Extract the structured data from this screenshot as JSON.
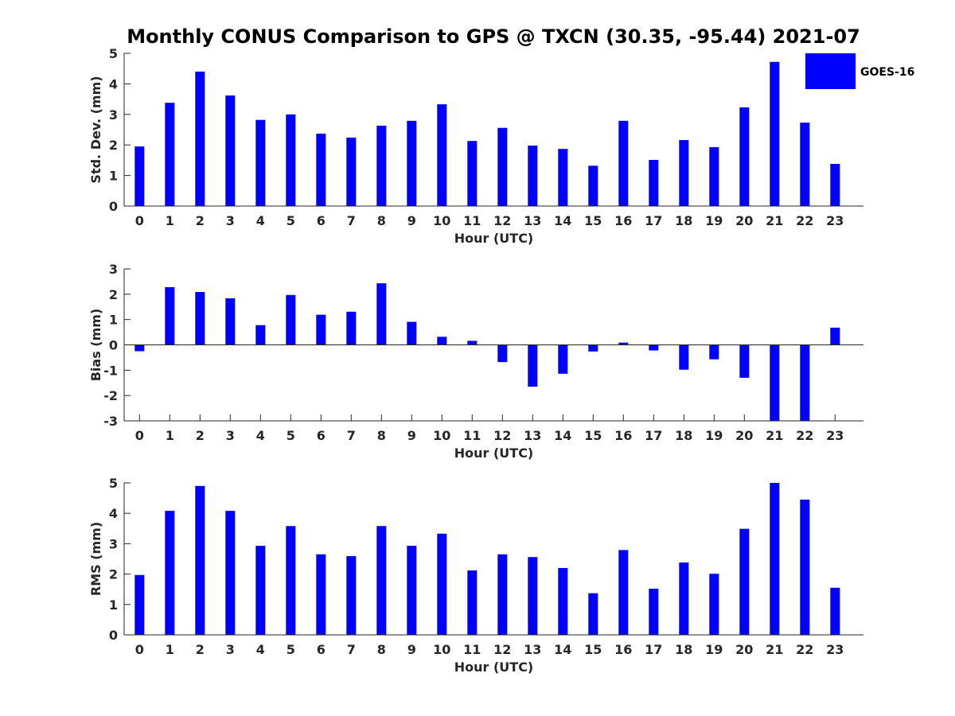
{
  "chart_data": {
    "type": "bar",
    "title": "Monthly CONUS Comparison to GPS @ TXCN (30.35, -95.44) 2021-07",
    "legend": {
      "placement": "top-right",
      "entries": [
        {
          "label": "GOES-16",
          "color": "#0000ff"
        }
      ]
    },
    "bar_color": "#0000ff",
    "panels": [
      {
        "id": "std",
        "ylabel": "Std. Dev. (mm)",
        "xlabel": "Hour (UTC)",
        "ylim": [
          0,
          5
        ],
        "yticks": [
          0,
          1,
          2,
          3,
          4,
          5
        ],
        "categories": [
          "0",
          "1",
          "2",
          "3",
          "4",
          "5",
          "6",
          "7",
          "8",
          "9",
          "10",
          "11",
          "12",
          "13",
          "14",
          "15",
          "16",
          "17",
          "18",
          "19",
          "20",
          "21",
          "22",
          "23"
        ],
        "series": [
          {
            "name": "GOES-16",
            "values": [
              1.95,
              3.38,
              4.4,
              3.62,
              2.82,
              3.0,
              2.37,
              2.24,
              2.63,
              2.79,
              3.33,
              2.13,
              2.56,
              1.98,
              1.87,
              1.32,
              2.79,
              1.51,
              2.16,
              1.93,
              3.23,
              4.72,
              2.73,
              1.38
            ]
          }
        ]
      },
      {
        "id": "bias",
        "ylabel": "Bias (mm)",
        "xlabel": "Hour (UTC)",
        "ylim": [
          -3,
          3
        ],
        "yticks": [
          -3,
          -2,
          -1,
          0,
          1,
          2,
          3
        ],
        "categories": [
          "0",
          "1",
          "2",
          "3",
          "4",
          "5",
          "6",
          "7",
          "8",
          "9",
          "10",
          "11",
          "12",
          "13",
          "14",
          "15",
          "16",
          "17",
          "18",
          "19",
          "20",
          "21",
          "22",
          "23"
        ],
        "series": [
          {
            "name": "GOES-16",
            "values": [
              -0.25,
              2.28,
              2.09,
              1.84,
              0.78,
              1.97,
              1.19,
              1.31,
              2.43,
              0.91,
              0.32,
              0.16,
              -0.68,
              -1.65,
              -1.14,
              -0.26,
              0.09,
              -0.22,
              -0.98,
              -0.57,
              -1.3,
              -3.0,
              -3.0,
              0.68
            ]
          }
        ]
      },
      {
        "id": "rms",
        "ylabel": "RMS (mm)",
        "xlabel": "Hour (UTC)",
        "ylim": [
          0,
          5
        ],
        "yticks": [
          0,
          1,
          2,
          3,
          4,
          5
        ],
        "categories": [
          "0",
          "1",
          "2",
          "3",
          "4",
          "5",
          "6",
          "7",
          "8",
          "9",
          "10",
          "11",
          "12",
          "13",
          "14",
          "15",
          "16",
          "17",
          "18",
          "19",
          "20",
          "21",
          "22",
          "23"
        ],
        "series": [
          {
            "name": "GOES-16",
            "values": [
              1.97,
              4.08,
              4.9,
              4.08,
              2.93,
              3.58,
              2.65,
              2.59,
              3.58,
              2.93,
              3.33,
              2.12,
              2.65,
              2.56,
              2.2,
              1.37,
              2.79,
              1.52,
              2.38,
              2.01,
              3.49,
              5.0,
              4.45,
              1.55
            ]
          }
        ]
      }
    ]
  }
}
